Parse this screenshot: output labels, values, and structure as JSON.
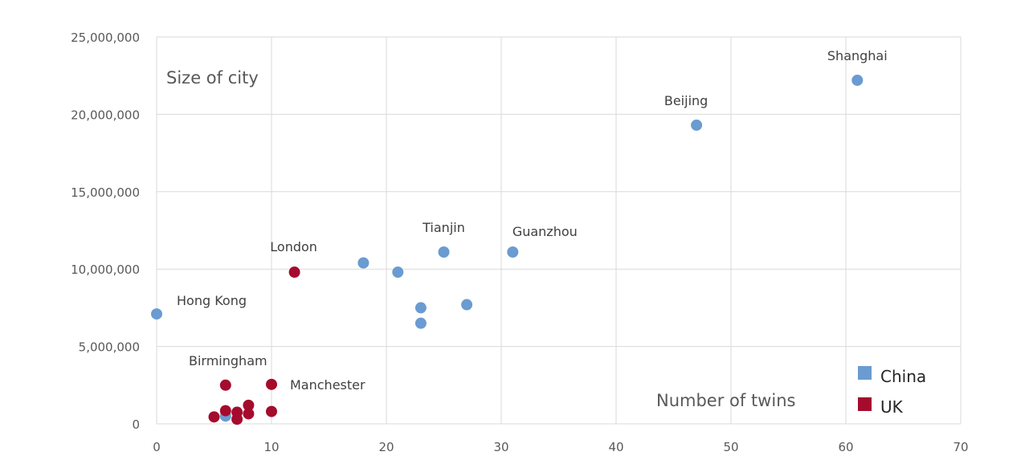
{
  "chart_data": {
    "type": "scatter",
    "title": "",
    "xlabel": "Number of twins",
    "ylabel": "Size of city",
    "xlim": [
      0,
      70
    ],
    "ylim": [
      0,
      25000000
    ],
    "x_ticks": [
      "0",
      "10",
      "20",
      "30",
      "40",
      "50",
      "60",
      "70"
    ],
    "y_ticks": [
      "0",
      "5,000,000",
      "10,000,000",
      "15,000,000",
      "20,000,000",
      "25,000,000"
    ],
    "x_tick_values": [
      0,
      10,
      20,
      30,
      40,
      50,
      60,
      70
    ],
    "y_tick_values": [
      0,
      5000000,
      10000000,
      15000000,
      20000000,
      25000000
    ],
    "grid": true,
    "legend_position": "bottom-right",
    "series": [
      {
        "name": "China",
        "color": "#6a9bd1",
        "points": [
          {
            "x": 0,
            "y": 7100000,
            "label": "Hong Kong"
          },
          {
            "x": 6,
            "y": 500000,
            "label": ""
          },
          {
            "x": 18,
            "y": 10400000,
            "label": ""
          },
          {
            "x": 21,
            "y": 9800000,
            "label": ""
          },
          {
            "x": 23,
            "y": 7500000,
            "label": ""
          },
          {
            "x": 23,
            "y": 6500000,
            "label": ""
          },
          {
            "x": 25,
            "y": 11100000,
            "label": "Tianjin"
          },
          {
            "x": 27,
            "y": 7700000,
            "label": ""
          },
          {
            "x": 31,
            "y": 11100000,
            "label": "Guanzhou"
          },
          {
            "x": 47,
            "y": 19300000,
            "label": "Beijing"
          },
          {
            "x": 61,
            "y": 22200000,
            "label": "Shanghai"
          }
        ]
      },
      {
        "name": "UK",
        "color": "#a50b2d",
        "points": [
          {
            "x": 5,
            "y": 450000,
            "label": ""
          },
          {
            "x": 6,
            "y": 2500000,
            "label": "Birmingham"
          },
          {
            "x": 6,
            "y": 850000,
            "label": ""
          },
          {
            "x": 7,
            "y": 750000,
            "label": ""
          },
          {
            "x": 7,
            "y": 300000,
            "label": ""
          },
          {
            "x": 8,
            "y": 1200000,
            "label": ""
          },
          {
            "x": 8,
            "y": 650000,
            "label": ""
          },
          {
            "x": 10,
            "y": 2550000,
            "label": "Manchester"
          },
          {
            "x": 10,
            "y": 800000,
            "label": ""
          },
          {
            "x": 12,
            "y": 9800000,
            "label": "London"
          }
        ]
      }
    ]
  }
}
